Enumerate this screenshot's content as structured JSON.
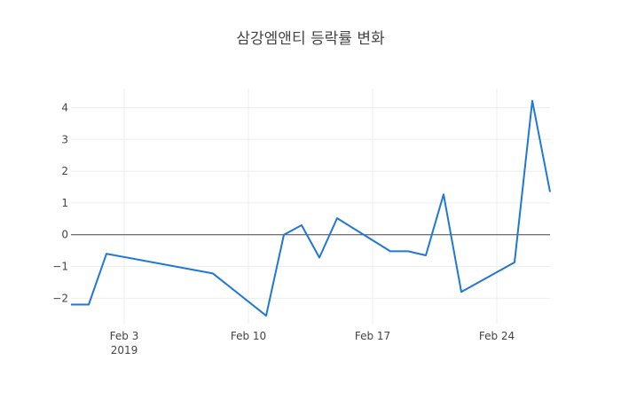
{
  "chart_data": {
    "type": "line",
    "title": "삼강엠앤티 등락률 변화",
    "xlabel": "",
    "ylabel": "",
    "x": [
      "2019-01-31",
      "2019-02-01",
      "2019-02-02",
      "2019-02-08",
      "2019-02-11",
      "2019-02-12",
      "2019-02-13",
      "2019-02-14",
      "2019-02-15",
      "2019-02-18",
      "2019-02-19",
      "2019-02-20",
      "2019-02-21",
      "2019-02-22",
      "2019-02-25",
      "2019-02-26",
      "2019-02-27"
    ],
    "series": [
      {
        "name": "",
        "color": "#1f77d8",
        "values": [
          -2.2,
          -2.2,
          -0.6,
          -1.22,
          -2.55,
          0.0,
          0.3,
          -0.72,
          0.52,
          -0.52,
          -0.52,
          -0.65,
          1.27,
          -1.8,
          -0.87,
          4.22,
          1.35
        ]
      }
    ],
    "xlim": [
      "2019-01-31",
      "2019-02-27"
    ],
    "ylim": [
      -2.8,
      4.6
    ],
    "x_ticks": [
      {
        "date": "2019-02-03",
        "label": "Feb 3",
        "sublabel": "2019"
      },
      {
        "date": "2019-02-10",
        "label": "Feb 10",
        "sublabel": ""
      },
      {
        "date": "2019-02-17",
        "label": "Feb 17",
        "sublabel": ""
      },
      {
        "date": "2019-02-24",
        "label": "Feb 24",
        "sublabel": ""
      }
    ],
    "y_ticks": [
      {
        "value": -2,
        "label": "−2"
      },
      {
        "value": -1,
        "label": "−1"
      },
      {
        "value": 0,
        "label": "0"
      },
      {
        "value": 1,
        "label": "1"
      },
      {
        "value": 2,
        "label": "2"
      },
      {
        "value": 3,
        "label": "3"
      },
      {
        "value": 4,
        "label": "4"
      }
    ],
    "grid": true,
    "zero_line": true
  }
}
